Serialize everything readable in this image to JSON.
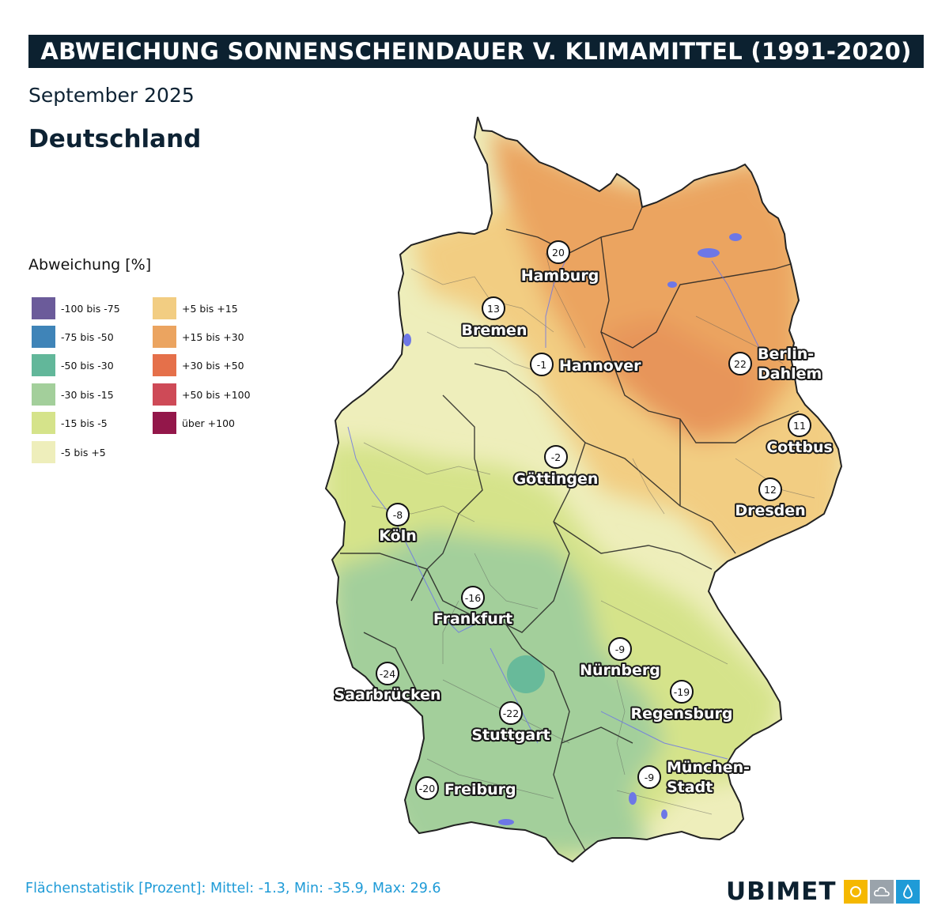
{
  "title": "ABWEICHUNG SONNENSCHEINDAUER V. KLIMAMITTEL (1991-2020)",
  "subtitle": "September 2025",
  "region": "Deutschland",
  "legend": {
    "title": "Abweichung [%]",
    "items": [
      {
        "label": "-100 bis -75",
        "color": "#6b5b9a"
      },
      {
        "label": "-75 bis -50",
        "color": "#3f84b8"
      },
      {
        "label": "-50 bis -30",
        "color": "#62b79a"
      },
      {
        "label": "-30 bis -15",
        "color": "#a3cf9b"
      },
      {
        "label": "-15 bis -5",
        "color": "#d5e38a"
      },
      {
        "label": "-5 bis +5",
        "color": "#eeeebb"
      },
      {
        "label": "+5 bis +15",
        "color": "#f2cd82"
      },
      {
        "label": "+15 bis +30",
        "color": "#eba460"
      },
      {
        "label": "+30 bis +50",
        "color": "#e5704a"
      },
      {
        "label": "+50 bis +100",
        "color": "#ce4a57"
      },
      {
        "label": "über +100",
        "color": "#93174a"
      }
    ]
  },
  "cities": [
    {
      "name": "Hamburg",
      "value": "20"
    },
    {
      "name": "Bremen",
      "value": "13"
    },
    {
      "name": "Hannover",
      "value": "-1"
    },
    {
      "name": "Berlin-",
      "name2": "Dahlem",
      "value": "22"
    },
    {
      "name": "Cottbus",
      "value": "11"
    },
    {
      "name": "Göttingen",
      "value": "-2"
    },
    {
      "name": "Dresden",
      "value": "12"
    },
    {
      "name": "Köln",
      "value": "-8"
    },
    {
      "name": "Frankfurt",
      "value": "-16"
    },
    {
      "name": "Nürnberg",
      "value": "-9"
    },
    {
      "name": "Saarbrücken",
      "value": "-24"
    },
    {
      "name": "Regensburg",
      "value": "-19"
    },
    {
      "name": "Stuttgart",
      "value": "-22"
    },
    {
      "name": "München-",
      "name2": "Stadt",
      "value": "-9"
    },
    {
      "name": "Freiburg",
      "value": "-20"
    }
  ],
  "footer": {
    "stats": "Flächenstatistik [Prozent]: Mittel: -1.3, Min: -35.9, Max: 29.6"
  },
  "logo": {
    "text": "UBIMET",
    "icons": [
      "sun-icon",
      "cloud-icon",
      "raindrop-icon"
    ],
    "colors": {
      "sun": "#f5b800",
      "cloud": "#9aa3ab",
      "drop": "#1f9bd7"
    }
  }
}
